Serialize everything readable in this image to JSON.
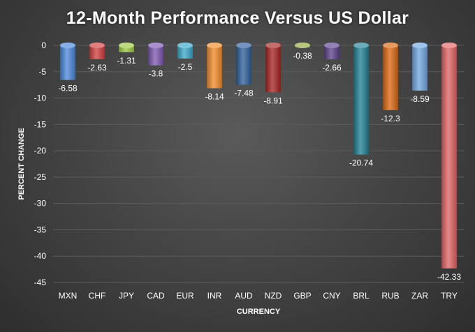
{
  "chart_data": {
    "type": "bar",
    "title": "12-Month Performance Versus US Dollar",
    "xlabel": "CURRENCY",
    "ylabel": "PERCENT CHANGE",
    "ylim": [
      -45,
      0
    ],
    "yticks": [
      0,
      -5,
      -10,
      -15,
      -20,
      -25,
      -30,
      -35,
      -40,
      -45
    ],
    "grid": true,
    "categories": [
      "MXN",
      "CHF",
      "JPY",
      "CAD",
      "EUR",
      "INR",
      "AUD",
      "NZD",
      "GBP",
      "CNY",
      "BRL",
      "RUB",
      "ZAR",
      "TRY"
    ],
    "values": [
      -6.58,
      -2.63,
      -1.31,
      -3.8,
      -2.5,
      -8.14,
      -7.48,
      -8.91,
      -0.38,
      -2.66,
      -20.74,
      -12.3,
      -8.59,
      -42.33
    ],
    "data_labels": [
      "-6.58",
      "-2.63",
      "-1.31",
      "-3.8",
      "-2.5",
      "-8.14",
      "-7.48",
      "-8.91",
      "-0.38",
      "-2.66",
      "-20.74",
      "-12.3",
      "-8.59",
      "-42.33"
    ],
    "colors": [
      "#4a86d8",
      "#d23c3c",
      "#9bc640",
      "#7b55b0",
      "#38a6c8",
      "#ef8a26",
      "#2a5c9a",
      "#a3221f",
      "#8fa63a",
      "#5a3f88",
      "#1e7d91",
      "#d9650e",
      "#6fa4de",
      "#e16262"
    ]
  }
}
